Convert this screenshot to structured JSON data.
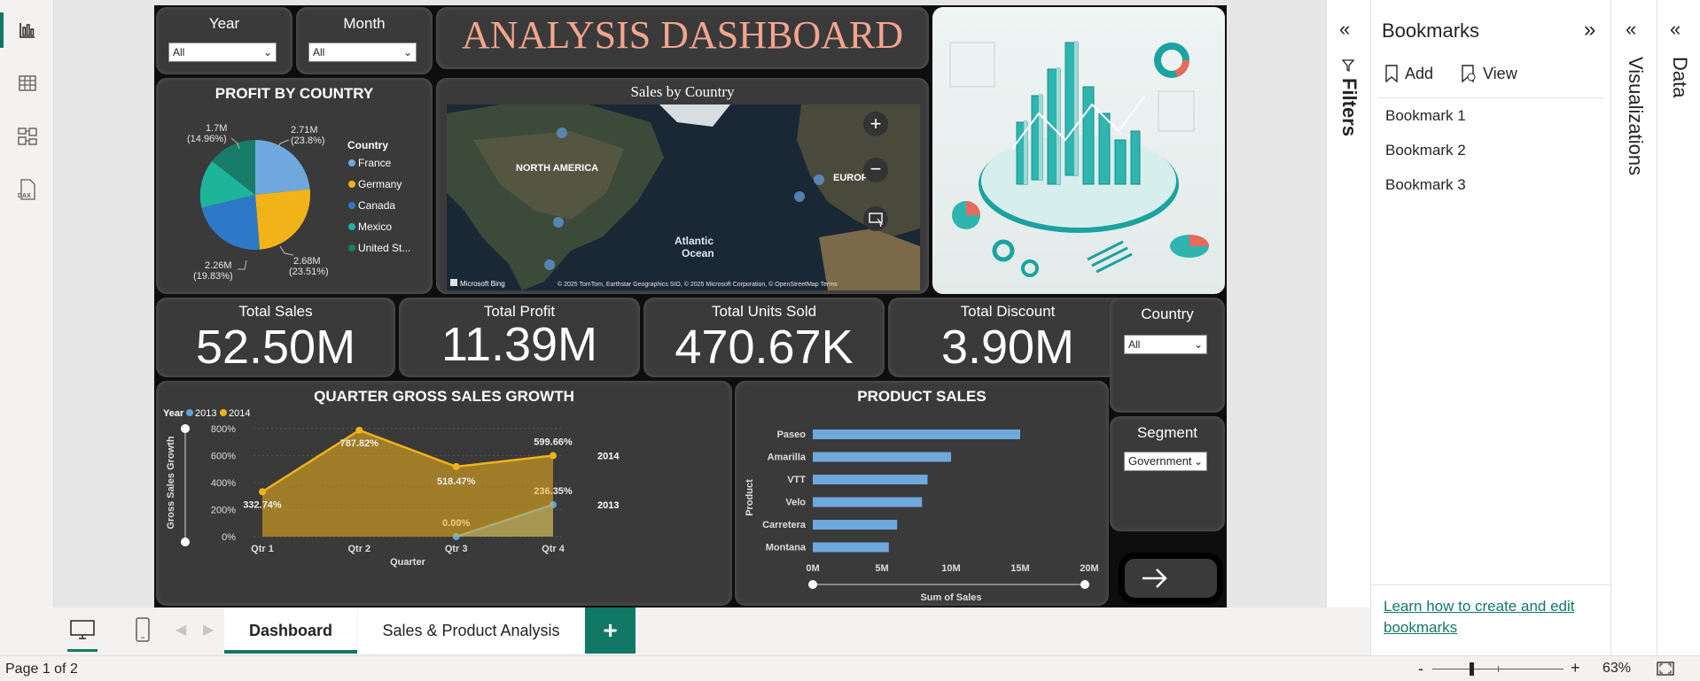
{
  "left_rail": {
    "icons": [
      "report-view-icon",
      "table-view-icon",
      "model-view-icon",
      "dax-query-icon"
    ]
  },
  "slicers": {
    "year": {
      "label": "Year",
      "value": "All"
    },
    "month": {
      "label": "Month",
      "value": "All"
    },
    "country": {
      "label": "Country",
      "value": "All"
    },
    "segment": {
      "label": "Segment",
      "value": "Government"
    }
  },
  "dashboard_title": "ANALYSIS DASHBOARD",
  "profit_by_country": {
    "title": "PROFIT BY COUNTRY",
    "legend_title": "Country",
    "legend": [
      "France",
      "Germany",
      "Canada",
      "Mexico",
      "United St..."
    ],
    "labels": [
      {
        "value": "2.71M",
        "pct": "(23.8%)"
      },
      {
        "value": "2.68M",
        "pct": "(23.51%)"
      },
      {
        "value": "2.26M",
        "pct": "(19.83%)"
      },
      {
        "value": "1.7M",
        "pct": "(14.96%)"
      }
    ]
  },
  "sales_by_country": {
    "title": "Sales by Country",
    "map_labels": {
      "north_america": "NORTH AMERICA",
      "europe": "EUROP",
      "atlantic1": "Atlantic",
      "atlantic2": "Ocean"
    },
    "logo": "Microsoft Bing",
    "attribution": "© 2025 TomTom, Earthstar Geographics SIO, © 2025 Microsoft Corporation, © OpenStreetMap  Terms"
  },
  "kpis": [
    {
      "title": "Total Sales",
      "value": "52.50M"
    },
    {
      "title": "Total Profit",
      "value": "11.39M"
    },
    {
      "title": "Total Units Sold",
      "value": "470.67K"
    },
    {
      "title": "Total Discount",
      "value": "3.90M"
    }
  ],
  "colors": {
    "y2013": "#5ba3de",
    "y2014": "#f2b319",
    "bar": "#6fa8dc",
    "title": "#f4a58e"
  },
  "chart_data": [
    {
      "type": "area",
      "title": "QUARTER GROSS SALES GROWTH",
      "legend_title": "Year",
      "xlabel": "Quarter",
      "ylabel": "Gross Sales Growth",
      "categories": [
        "Qtr 1",
        "Qtr 2",
        "Qtr 3",
        "Qtr 4"
      ],
      "yticks": [
        "800%",
        "600%",
        "400%",
        "200%",
        "0%"
      ],
      "ylim": [
        0,
        800
      ],
      "series": [
        {
          "name": "2013",
          "values": [
            null,
            null,
            0,
            236.35
          ],
          "labels": [
            "",
            "",
            "0.00%",
            "236.35%"
          ],
          "end_label": "2013"
        },
        {
          "name": "2014",
          "values": [
            332.74,
            787.82,
            518.47,
            599.66
          ],
          "labels": [
            "332.74%",
            "787.82%",
            "518.47%",
            "599.66%"
          ],
          "end_label": "2014"
        }
      ]
    },
    {
      "type": "bar",
      "title": "PRODUCT SALES",
      "xlabel": "Sum of Sales",
      "ylabel": "Product",
      "categories": [
        "Paseo",
        "Amarilla",
        "VTT",
        "Velo",
        "Carretera",
        "Montana"
      ],
      "values": [
        15.0,
        10.0,
        8.3,
        7.9,
        6.1,
        5.5
      ],
      "xticks": [
        "0M",
        "5M",
        "10M",
        "15M",
        "20M"
      ],
      "xlim": [
        0,
        20
      ]
    }
  ],
  "filters_pane": {
    "label": "Filters"
  },
  "bookmarks": {
    "title": "Bookmarks",
    "add": "Add",
    "view": "View",
    "items": [
      "Bookmark 1",
      "Bookmark 2",
      "Bookmark 3"
    ],
    "learn_link": "Learn how to create and edit bookmarks"
  },
  "visualizations_pane": {
    "label": "Visualizations"
  },
  "data_pane": {
    "label": "Data"
  },
  "tabs": [
    "Dashboard",
    "Sales & Product Analysis"
  ],
  "add_tab": "+",
  "status": {
    "page": "Page 1 of 2",
    "zoom": "63%",
    "minus": "-",
    "plus": "+"
  }
}
